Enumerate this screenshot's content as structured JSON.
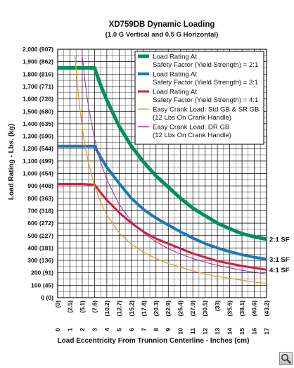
{
  "chart_data": {
    "type": "line",
    "title": "XD759DB Dynamic Loading",
    "subtitle": "(1.0 G Vertical and 0.5 G Horizontal)",
    "xlabel": "Load Eccentricity From Trunnion Centerline - Inches (cm)",
    "ylabel": "Load Rating - Lbs. (kg)",
    "xlim": [
      0,
      17
    ],
    "ylim": [
      0,
      2000
    ],
    "grid": true,
    "legend_position": "top-right",
    "x_ticks": [
      {
        "inch": "0",
        "cm": "(0)"
      },
      {
        "inch": "1",
        "cm": "(2.5)"
      },
      {
        "inch": "2",
        "cm": "(5.1)"
      },
      {
        "inch": "3",
        "cm": "(7.6)"
      },
      {
        "inch": "4",
        "cm": "(10.2)"
      },
      {
        "inch": "5",
        "cm": "(12.7)"
      },
      {
        "inch": "6",
        "cm": "(15.2)"
      },
      {
        "inch": "7",
        "cm": "(17.8)"
      },
      {
        "inch": "8",
        "cm": "(20.3)"
      },
      {
        "inch": "9",
        "cm": "(22.9)"
      },
      {
        "inch": "10",
        "cm": "(25.4)"
      },
      {
        "inch": "11",
        "cm": "(27.9)"
      },
      {
        "inch": "12",
        "cm": "(30.5)"
      },
      {
        "inch": "13",
        "cm": "(33)"
      },
      {
        "inch": "14",
        "cm": "(35.6)"
      },
      {
        "inch": "15",
        "cm": "(38.1)"
      },
      {
        "inch": "16",
        "cm": "(40.6)"
      },
      {
        "inch": "17",
        "cm": "(43.2)"
      }
    ],
    "y_ticks": [
      "2,000 (907)",
      "1,900 (862)",
      "1,800 (816)",
      "1,700 (771)",
      "1,600 (726)",
      "1,500 (680)",
      "1,400 (635)",
      "1,300 (590)",
      "1,200 (544)",
      "1,100 (499)",
      "1,000 (454)",
      "900 (408)",
      "800 (363)",
      "700 (318)",
      "600 (272)",
      "500 (227)",
      "400 (181)",
      "300 (136)",
      "200 (91)",
      "100 (45)",
      "0 (0)"
    ],
    "series": [
      {
        "name": "Load Rating At Safety Factor (Yield Strength) = 2:1",
        "legend_lines": [
          "Load Rating At",
          "Safety Factor (Yield Strength) = 2:1"
        ],
        "color": "#00905a",
        "end_label": "2:1 SF",
        "x": [
          0,
          1,
          2,
          3,
          3.5,
          4,
          5,
          6,
          7,
          8,
          9,
          10,
          11,
          12,
          13,
          14,
          15,
          16,
          17
        ],
        "y": [
          1850,
          1850,
          1850,
          1850,
          1710,
          1590,
          1380,
          1220,
          1090,
          980,
          890,
          800,
          720,
          660,
          600,
          555,
          515,
          490,
          470
        ]
      },
      {
        "name": "Load Rating At Safety Factor (Yield Strength) = 3:1",
        "legend_lines": [
          "Load Rating At",
          "Safety Factor (Yield Strength) = 3:1"
        ],
        "color": "#1a78b8",
        "end_label": "3:1 SF",
        "x": [
          0,
          1,
          2,
          3,
          3.5,
          4,
          5,
          6,
          7,
          8,
          9,
          10,
          11,
          12,
          13,
          14,
          15,
          16,
          17
        ],
        "y": [
          1220,
          1220,
          1220,
          1220,
          1130,
          1050,
          920,
          800,
          710,
          640,
          585,
          530,
          480,
          435,
          400,
          370,
          345,
          325,
          310
        ]
      },
      {
        "name": "Load Rating At Safety Factor (Yield Strength) = 4:1",
        "legend_lines": [
          "Load Rating At",
          "Safety Factor (Yield Strength) = 4:1"
        ],
        "color": "#d0203c",
        "end_label": "4:1 SF",
        "x": [
          0,
          1,
          2,
          3,
          3.5,
          4,
          5,
          6,
          7,
          8,
          9,
          10,
          11,
          12,
          13,
          14,
          15,
          16,
          17
        ],
        "y": [
          915,
          915,
          915,
          910,
          845,
          785,
          685,
          600,
          530,
          475,
          435,
          395,
          355,
          325,
          295,
          275,
          255,
          240,
          225
        ]
      },
      {
        "name": "Easy Crank Load: Std GB & SR GB (12 Lbs On Crank Handle)",
        "legend_lines": [
          "Easy Crank Load: Std GB & SR  GB",
          "(12 Lbs On Crank Handle)"
        ],
        "color": "#e89a28",
        "end_label": "",
        "x": [
          1.4,
          1.6,
          1.8,
          2,
          2.25,
          2.5,
          3,
          3.5,
          4,
          5,
          6,
          7,
          8,
          9,
          10,
          11,
          12,
          13,
          14,
          15,
          16,
          17
        ],
        "y": [
          1950,
          1720,
          1530,
          1370,
          1210,
          1090,
          900,
          770,
          665,
          520,
          430,
          365,
          315,
          275,
          245,
          215,
          190,
          170,
          155,
          140,
          125,
          115
        ]
      },
      {
        "name": "Easy Crank Load: DR GB (12 Lbs On Crank Handle)",
        "legend_lines": [
          "Easy Crank Load: DR GB",
          "(12 Lbs On Crank Handle)"
        ],
        "color": "#a8259a",
        "end_label": "",
        "x": [
          2,
          2.25,
          2.5,
          3,
          3.5,
          4,
          5,
          6,
          7,
          8,
          9,
          10,
          11,
          12,
          13,
          14,
          15,
          16,
          17
        ],
        "y": [
          1950,
          1720,
          1540,
          1280,
          1090,
          950,
          750,
          615,
          520,
          450,
          395,
          350,
          315,
          285,
          260,
          240,
          220,
          205,
          190
        ]
      }
    ]
  },
  "ui": {
    "zoom_icon": "magnifier-icon"
  }
}
